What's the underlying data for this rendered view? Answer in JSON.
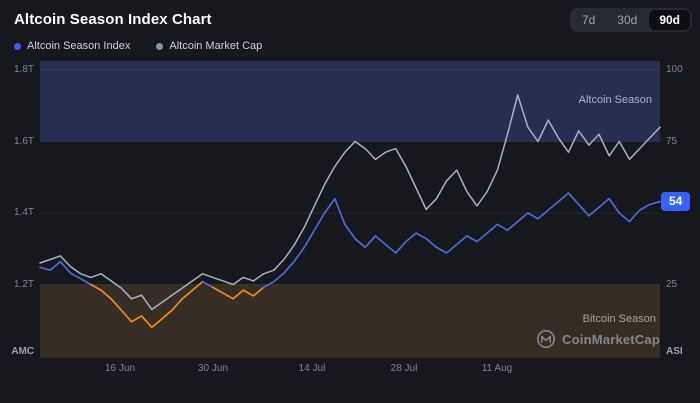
{
  "header": {
    "title": "Altcoin Season Index Chart",
    "ranges": [
      {
        "label": "7d",
        "active": false
      },
      {
        "label": "30d",
        "active": false
      },
      {
        "label": "90d",
        "active": true
      }
    ]
  },
  "legend": [
    {
      "label": "Altcoin Season Index",
      "color": "#3861fb"
    },
    {
      "label": "Altcoin Market Cap",
      "color": "#8b93a7"
    }
  ],
  "chart_data": {
    "type": "line",
    "title": "Altcoin Season Index Chart",
    "x_tick_labels": [
      "16 Jun",
      "30 Jun",
      "14 Jul",
      "28 Jul",
      "11 Aug"
    ],
    "y_left_axis": {
      "name": "AMC",
      "ticks": [
        "1.8T",
        "1.6T",
        "1.4T",
        "1.2T"
      ],
      "tick_values": [
        1.8,
        1.6,
        1.4,
        1.2
      ],
      "range": [
        1.0,
        1.8
      ]
    },
    "y_right_axis": {
      "name": "ASI",
      "ticks": [
        "100",
        "75",
        "25"
      ],
      "tick_values": [
        100,
        75,
        25
      ],
      "range": [
        0,
        100
      ]
    },
    "gridline_values": [
      100,
      75,
      50,
      25
    ],
    "bands": [
      {
        "label": "Altcoin Season",
        "axis": "right",
        "from": 75,
        "to": 100,
        "color": "#272e4f"
      },
      {
        "label": "Bitcoin Season",
        "axis": "right",
        "from": 0,
        "to": 25,
        "color": "#362e25"
      }
    ],
    "current_badge": {
      "value": 54,
      "label": "54",
      "color": "#3861fb"
    },
    "series": [
      {
        "name": "Altcoin Season Index",
        "axis": "right",
        "color": "#4a6bdb",
        "color_in_bitcoin_season": "#ef8a16",
        "values": [
          31,
          30,
          33,
          29,
          27,
          25,
          23,
          20,
          16,
          12,
          14,
          10,
          13,
          16,
          20,
          23,
          26,
          24,
          22,
          20,
          23,
          21,
          24,
          26,
          29,
          33,
          38,
          44,
          50,
          55,
          46,
          41,
          38,
          42,
          39,
          36,
          40,
          43,
          41,
          38,
          36,
          39,
          42,
          40,
          43,
          46,
          44,
          47,
          50,
          48,
          51,
          54,
          57,
          53,
          49,
          52,
          55,
          50,
          47,
          51,
          53,
          54
        ]
      },
      {
        "name": "Altcoin Market Cap",
        "axis": "left",
        "color": "#a9b2c4",
        "values": [
          1.26,
          1.27,
          1.28,
          1.25,
          1.23,
          1.22,
          1.23,
          1.21,
          1.19,
          1.16,
          1.17,
          1.13,
          1.15,
          1.17,
          1.19,
          1.21,
          1.23,
          1.22,
          1.21,
          1.2,
          1.22,
          1.21,
          1.23,
          1.24,
          1.27,
          1.31,
          1.36,
          1.42,
          1.48,
          1.53,
          1.57,
          1.6,
          1.58,
          1.55,
          1.57,
          1.58,
          1.53,
          1.47,
          1.41,
          1.44,
          1.49,
          1.52,
          1.46,
          1.42,
          1.46,
          1.52,
          1.62,
          1.73,
          1.64,
          1.6,
          1.66,
          1.61,
          1.57,
          1.63,
          1.59,
          1.62,
          1.56,
          1.6,
          1.55,
          1.58,
          1.61,
          1.64
        ]
      }
    ],
    "watermark": "CoinMarketCap"
  }
}
